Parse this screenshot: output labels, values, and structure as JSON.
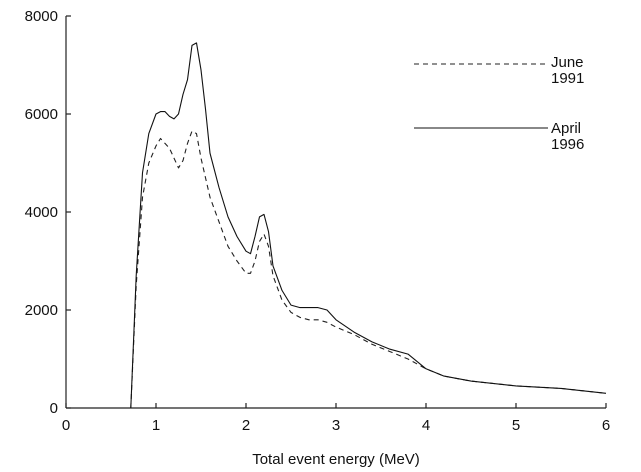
{
  "chart_data": {
    "type": "line",
    "title": "",
    "xlabel": "Total event energy (MeV)",
    "ylabel": "",
    "xlim": [
      0,
      6
    ],
    "ylim": [
      0,
      8000
    ],
    "xticks": [
      0,
      1,
      2,
      3,
      4,
      5,
      6
    ],
    "yticks": [
      0,
      2000,
      4000,
      6000,
      8000
    ],
    "grid": false,
    "legend_position": "top-right",
    "series": [
      {
        "name": "June 1991",
        "line_style": "dashed",
        "color": "#222222",
        "x": [
          0.72,
          0.78,
          0.85,
          0.92,
          1.0,
          1.05,
          1.1,
          1.15,
          1.2,
          1.25,
          1.3,
          1.35,
          1.4,
          1.45,
          1.5,
          1.55,
          1.6,
          1.7,
          1.8,
          1.9,
          2.0,
          2.05,
          2.1,
          2.15,
          2.2,
          2.25,
          2.3,
          2.4,
          2.5,
          2.6,
          2.7,
          2.8,
          2.9,
          3.0,
          3.2,
          3.4,
          3.6,
          3.8,
          4.0,
          4.2,
          4.5,
          5.0,
          5.5,
          6.0
        ],
        "y": [
          0,
          2500,
          4300,
          5000,
          5350,
          5500,
          5400,
          5300,
          5100,
          4900,
          5050,
          5400,
          5650,
          5600,
          5100,
          4700,
          4300,
          3800,
          3300,
          3000,
          2750,
          2750,
          3000,
          3400,
          3550,
          3300,
          2700,
          2200,
          1950,
          1850,
          1800,
          1800,
          1750,
          1650,
          1500,
          1300,
          1150,
          1000,
          800,
          650,
          550,
          450,
          400,
          300
        ]
      },
      {
        "name": "April 1996",
        "line_style": "solid",
        "color": "#111111",
        "x": [
          0.72,
          0.78,
          0.85,
          0.92,
          1.0,
          1.05,
          1.1,
          1.15,
          1.2,
          1.25,
          1.3,
          1.35,
          1.4,
          1.45,
          1.5,
          1.55,
          1.6,
          1.7,
          1.8,
          1.9,
          2.0,
          2.05,
          2.1,
          2.15,
          2.2,
          2.25,
          2.3,
          2.4,
          2.5,
          2.6,
          2.7,
          2.8,
          2.9,
          3.0,
          3.2,
          3.4,
          3.6,
          3.8,
          4.0,
          4.2,
          4.5,
          5.0,
          5.5,
          6.0
        ],
        "y": [
          0,
          2700,
          4800,
          5600,
          6000,
          6050,
          6050,
          5950,
          5900,
          6000,
          6400,
          6700,
          7400,
          7450,
          6900,
          6100,
          5200,
          4500,
          3900,
          3500,
          3200,
          3150,
          3500,
          3900,
          3950,
          3600,
          2900,
          2400,
          2100,
          2050,
          2050,
          2050,
          2000,
          1800,
          1550,
          1350,
          1200,
          1100,
          800,
          650,
          550,
          450,
          400,
          300
        ]
      }
    ]
  }
}
